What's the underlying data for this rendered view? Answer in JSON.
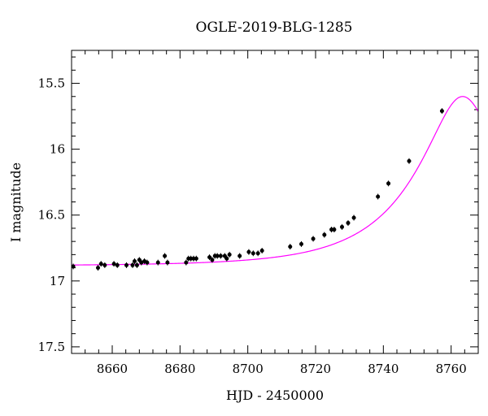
{
  "chart_data": {
    "type": "scatter",
    "title": "OGLE-2019-BLG-1285",
    "xlabel": "HJD - 2450000",
    "ylabel": "I magnitude",
    "xlim": [
      8648,
      8768
    ],
    "ylim": [
      17.55,
      15.25
    ],
    "y_inverted": true,
    "grid": false,
    "legend": "none",
    "x_major_ticks": [
      8660,
      8680,
      8700,
      8720,
      8740,
      8760
    ],
    "x_major_tick_labels": [
      "8660",
      "8680",
      "8700",
      "8720",
      "8740",
      "8760"
    ],
    "y_major_ticks": [
      15.5,
      16,
      16.5,
      17,
      17.5
    ],
    "y_major_tick_labels": [
      "15.5",
      "16",
      "16.5",
      "17",
      "17.5"
    ],
    "colors": {
      "model": "#ff00ff",
      "points": "#000000"
    },
    "series": [
      {
        "kind": "points",
        "x": [
          8648.5,
          8655.8,
          8656.7,
          8657.8,
          8660.5,
          8661.5,
          8664.2,
          8666.0,
          8666.6,
          8667.3,
          8668.0,
          8668.6,
          8669.5,
          8670.3,
          8673.5,
          8675.5,
          8676.3,
          8681.8,
          8682.5,
          8683.2,
          8684.0,
          8684.8,
          8688.7,
          8689.5,
          8690.3,
          8691.0,
          8692.0,
          8693.2,
          8693.8,
          8694.6,
          8697.6,
          8700.3,
          8701.6,
          8703.0,
          8704.2,
          8712.5,
          8715.8,
          8719.3,
          8722.6,
          8724.7,
          8725.5,
          8727.8,
          8729.6,
          8731.3,
          8738.4,
          8741.5,
          8747.6,
          8757.3
        ],
        "y": [
          16.89,
          16.9,
          16.87,
          16.88,
          16.87,
          16.88,
          16.88,
          16.88,
          16.85,
          16.88,
          16.84,
          16.86,
          16.85,
          16.86,
          16.86,
          16.81,
          16.86,
          16.86,
          16.83,
          16.83,
          16.83,
          16.83,
          16.82,
          16.84,
          16.81,
          16.81,
          16.81,
          16.81,
          16.83,
          16.8,
          16.81,
          16.78,
          16.79,
          16.79,
          16.77,
          16.74,
          16.72,
          16.68,
          16.65,
          16.61,
          16.61,
          16.59,
          16.56,
          16.52,
          16.36,
          16.26,
          16.09,
          15.71
        ]
      },
      {
        "kind": "model",
        "t0": 8763.4,
        "u0": 0.33,
        "tE": 28,
        "baseline_mag": 16.885,
        "peak_mag": 15.6
      }
    ]
  }
}
